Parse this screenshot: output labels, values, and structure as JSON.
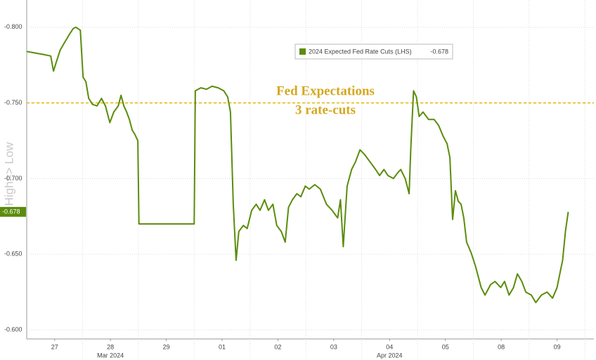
{
  "chart_data": {
    "type": "line",
    "y_label": "High=> Low",
    "xlim": [
      0,
      10.16
    ],
    "xticks": [
      {
        "value": 0.5,
        "label": "27"
      },
      {
        "value": 1.5,
        "label": "28"
      },
      {
        "value": 2.5,
        "label": "29"
      },
      {
        "value": 3.5,
        "label": "01"
      },
      {
        "value": 4.5,
        "label": "02"
      },
      {
        "value": 5.5,
        "label": "03"
      },
      {
        "value": 6.5,
        "label": "04"
      },
      {
        "value": 7.5,
        "label": "05"
      },
      {
        "value": 8.5,
        "label": "08"
      },
      {
        "value": 9.5,
        "label": "09"
      }
    ],
    "x_sublabels": [
      {
        "value": 1.5,
        "label": "Mar 2024"
      },
      {
        "value": 6.5,
        "label": "Apr 2024"
      }
    ],
    "ylim": [
      -0.594,
      -0.818
    ],
    "yticks": [
      {
        "value": -0.8,
        "label": "-0.800"
      },
      {
        "value": -0.75,
        "label": "-0.750"
      },
      {
        "value": -0.7,
        "label": "-0.700"
      },
      {
        "value": -0.65,
        "label": "-0.650"
      },
      {
        "value": -0.6,
        "label": "-0.600"
      }
    ],
    "grid": true,
    "reference_line": {
      "value": -0.75,
      "color": "#e2b900",
      "label_lines": [
        "Fed Expectations",
        "3 rate-cuts"
      ]
    },
    "last_value": -0.678,
    "series": [
      {
        "name": "2024 Expected Fed Rate Cuts (LHS)",
        "color": "#5b8c0c",
        "x": [
          0,
          0.15,
          0.3,
          0.43,
          0.48,
          0.53,
          0.6,
          0.68,
          0.76,
          0.83,
          0.88,
          0.96,
          1.01,
          1.06,
          1.11,
          1.18,
          1.26,
          1.34,
          1.41,
          1.49,
          1.56,
          1.64,
          1.69,
          1.74,
          1.79,
          1.84,
          1.89,
          1.94,
          1.99,
          2.01,
          3.0,
          3.02,
          3.12,
          3.22,
          3.32,
          3.43,
          3.53,
          3.6,
          3.65,
          3.7,
          3.75,
          3.8,
          3.88,
          3.95,
          4.03,
          4.11,
          4.18,
          4.26,
          4.33,
          4.41,
          4.48,
          4.56,
          4.63,
          4.69,
          4.76,
          4.84,
          4.91,
          4.99,
          5.06,
          5.16,
          5.26,
          5.37,
          5.47,
          5.57,
          5.62,
          5.67,
          5.74,
          5.82,
          5.89,
          5.97,
          6.05,
          6.15,
          6.25,
          6.32,
          6.4,
          6.47,
          6.57,
          6.65,
          6.7,
          6.78,
          6.85,
          6.88,
          6.93,
          6.98,
          7.03,
          7.1,
          7.2,
          7.3,
          7.38,
          7.46,
          7.53,
          7.58,
          7.63,
          7.68,
          7.73,
          7.78,
          7.83,
          7.88,
          7.96,
          8.04,
          8.14,
          8.21,
          8.31,
          8.39,
          8.49,
          8.56,
          8.64,
          8.72,
          8.79,
          8.87,
          8.94,
          9.04,
          9.12,
          9.22,
          9.32,
          9.42,
          9.5,
          9.55,
          9.6,
          9.65,
          9.7
        ],
        "values": [
          -0.784,
          -0.783,
          -0.782,
          -0.781,
          -0.771,
          -0.777,
          -0.785,
          -0.79,
          -0.795,
          -0.799,
          -0.8,
          -0.798,
          -0.767,
          -0.764,
          -0.753,
          -0.749,
          -0.748,
          -0.753,
          -0.748,
          -0.737,
          -0.744,
          -0.748,
          -0.755,
          -0.748,
          -0.744,
          -0.739,
          -0.732,
          -0.729,
          -0.725,
          -0.67,
          -0.67,
          -0.758,
          -0.76,
          -0.759,
          -0.761,
          -0.76,
          -0.758,
          -0.754,
          -0.744,
          -0.683,
          -0.646,
          -0.665,
          -0.669,
          -0.667,
          -0.679,
          -0.683,
          -0.679,
          -0.686,
          -0.679,
          -0.683,
          -0.669,
          -0.665,
          -0.658,
          -0.681,
          -0.686,
          -0.69,
          -0.688,
          -0.695,
          -0.693,
          -0.696,
          -0.693,
          -0.683,
          -0.679,
          -0.674,
          -0.686,
          -0.655,
          -0.695,
          -0.706,
          -0.711,
          -0.719,
          -0.716,
          -0.711,
          -0.706,
          -0.702,
          -0.706,
          -0.702,
          -0.7,
          -0.704,
          -0.706,
          -0.7,
          -0.69,
          -0.72,
          -0.758,
          -0.754,
          -0.741,
          -0.744,
          -0.739,
          -0.739,
          -0.735,
          -0.728,
          -0.723,
          -0.714,
          -0.673,
          -0.692,
          -0.685,
          -0.683,
          -0.674,
          -0.658,
          -0.651,
          -0.642,
          -0.628,
          -0.623,
          -0.63,
          -0.632,
          -0.628,
          -0.632,
          -0.623,
          -0.628,
          -0.637,
          -0.632,
          -0.625,
          -0.623,
          -0.618,
          -0.623,
          -0.625,
          -0.621,
          -0.628,
          -0.637,
          -0.646,
          -0.665,
          -0.678
        ]
      }
    ]
  }
}
